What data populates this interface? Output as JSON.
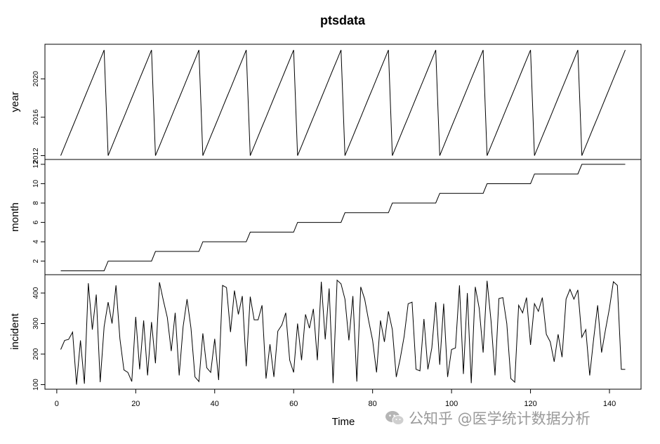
{
  "watermark": {
    "text": "公知乎 @医学统计数据分析"
  },
  "chart_data": {
    "type": "line",
    "title": "ptsdata",
    "xlabel": "Time",
    "x": {
      "start": 1,
      "end": 144,
      "ticks": [
        0,
        20,
        40,
        60,
        80,
        100,
        120,
        140
      ],
      "lim": [
        -3,
        148
      ]
    },
    "grid": false,
    "panels": [
      {
        "name": "year",
        "ylabel": "year",
        "ticks": [
          2012,
          2016,
          2020
        ],
        "ylim": [
          2011.6,
          2023.6
        ],
        "values": [
          2012,
          2013,
          2014,
          2015,
          2016,
          2017,
          2018,
          2019,
          2020,
          2021,
          2022,
          2023,
          2012,
          2013,
          2014,
          2015,
          2016,
          2017,
          2018,
          2019,
          2020,
          2021,
          2022,
          2023,
          2012,
          2013,
          2014,
          2015,
          2016,
          2017,
          2018,
          2019,
          2020,
          2021,
          2022,
          2023,
          2012,
          2013,
          2014,
          2015,
          2016,
          2017,
          2018,
          2019,
          2020,
          2021,
          2022,
          2023,
          2012,
          2013,
          2014,
          2015,
          2016,
          2017,
          2018,
          2019,
          2020,
          2021,
          2022,
          2023,
          2012,
          2013,
          2014,
          2015,
          2016,
          2017,
          2018,
          2019,
          2020,
          2021,
          2022,
          2023,
          2012,
          2013,
          2014,
          2015,
          2016,
          2017,
          2018,
          2019,
          2020,
          2021,
          2022,
          2023,
          2012,
          2013,
          2014,
          2015,
          2016,
          2017,
          2018,
          2019,
          2020,
          2021,
          2022,
          2023,
          2012,
          2013,
          2014,
          2015,
          2016,
          2017,
          2018,
          2019,
          2020,
          2021,
          2022,
          2023,
          2012,
          2013,
          2014,
          2015,
          2016,
          2017,
          2018,
          2019,
          2020,
          2021,
          2022,
          2023,
          2012,
          2013,
          2014,
          2015,
          2016,
          2017,
          2018,
          2019,
          2020,
          2021,
          2022,
          2023,
          2012,
          2013,
          2014,
          2015,
          2016,
          2017,
          2018,
          2019,
          2020,
          2021,
          2022,
          2023
        ]
      },
      {
        "name": "month",
        "ylabel": "month",
        "ticks": [
          2,
          4,
          6,
          8,
          10,
          12
        ],
        "ylim": [
          0.6,
          12.5
        ],
        "values": [
          1,
          1,
          1,
          1,
          1,
          1,
          1,
          1,
          1,
          1,
          1,
          1,
          2,
          2,
          2,
          2,
          2,
          2,
          2,
          2,
          2,
          2,
          2,
          2,
          3,
          3,
          3,
          3,
          3,
          3,
          3,
          3,
          3,
          3,
          3,
          3,
          4,
          4,
          4,
          4,
          4,
          4,
          4,
          4,
          4,
          4,
          4,
          4,
          5,
          5,
          5,
          5,
          5,
          5,
          5,
          5,
          5,
          5,
          5,
          5,
          6,
          6,
          6,
          6,
          6,
          6,
          6,
          6,
          6,
          6,
          6,
          6,
          7,
          7,
          7,
          7,
          7,
          7,
          7,
          7,
          7,
          7,
          7,
          7,
          8,
          8,
          8,
          8,
          8,
          8,
          8,
          8,
          8,
          8,
          8,
          8,
          9,
          9,
          9,
          9,
          9,
          9,
          9,
          9,
          9,
          9,
          9,
          9,
          10,
          10,
          10,
          10,
          10,
          10,
          10,
          10,
          10,
          10,
          10,
          10,
          11,
          11,
          11,
          11,
          11,
          11,
          11,
          11,
          11,
          11,
          11,
          11,
          12,
          12,
          12,
          12,
          12,
          12,
          12,
          12,
          12,
          12,
          12,
          12
        ]
      },
      {
        "name": "incident",
        "ylabel": "incident",
        "ticks": [
          100,
          200,
          300,
          400
        ],
        "ylim": [
          85,
          460
        ],
        "values": [
          215,
          245,
          248,
          272,
          100,
          245,
          103,
          432,
          280,
          395,
          108,
          290,
          370,
          300,
          425,
          250,
          148,
          140,
          110,
          322,
          150,
          310,
          130,
          305,
          170,
          435,
          375,
          320,
          210,
          335,
          130,
          290,
          380,
          285,
          125,
          110,
          268,
          155,
          140,
          250,
          115,
          425,
          418,
          272,
          408,
          330,
          390,
          160,
          388,
          312,
          312,
          360,
          120,
          232,
          125,
          275,
          295,
          335,
          180,
          140,
          300,
          180,
          330,
          285,
          348,
          180,
          437,
          248,
          415,
          105,
          442,
          430,
          380,
          245,
          390,
          110,
          420,
          380,
          310,
          245,
          140,
          310,
          240,
          340,
          280,
          125,
          185,
          258,
          365,
          370,
          150,
          145,
          315,
          150,
          220,
          370,
          165,
          365,
          125,
          215,
          220,
          425,
          135,
          400,
          105,
          420,
          350,
          205,
          440,
          310,
          130,
          382,
          385,
          300,
          120,
          108,
          360,
          335,
          385,
          230,
          365,
          340,
          385,
          265,
          240,
          175,
          265,
          190,
          380,
          412,
          380,
          410,
          255,
          280,
          130,
          250,
          360,
          205,
          280,
          350,
          437,
          425,
          150,
          150
        ]
      }
    ]
  }
}
